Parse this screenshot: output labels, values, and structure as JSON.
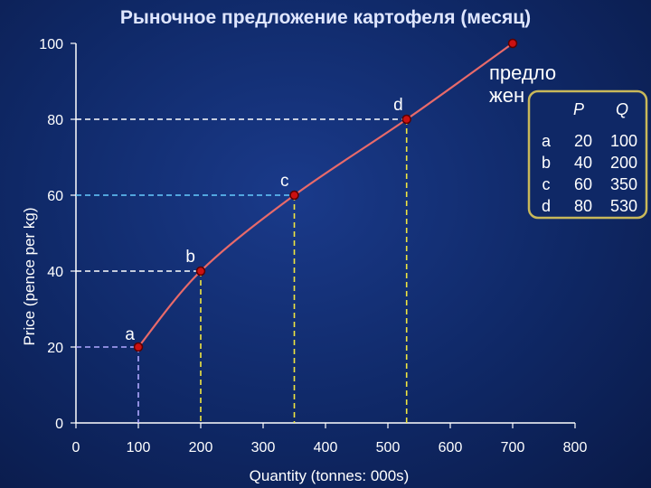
{
  "chart_data": {
    "type": "line",
    "title": "Рыночное предложение картофеля (месяц)",
    "xlabel": "Quantity (tonnes: 000s)",
    "ylabel": "Price (pence per kg)",
    "xlim": [
      0,
      800
    ],
    "ylim": [
      0,
      100
    ],
    "xticks": [
      0,
      100,
      200,
      300,
      400,
      500,
      600,
      700,
      800
    ],
    "yticks": [
      0,
      20,
      40,
      60,
      80,
      100
    ],
    "grid": false,
    "curve_label_lines": [
      "предло",
      "жен"
    ],
    "series": [
      {
        "values": [
          {
            "label": "a",
            "x": 100,
            "y": 20
          },
          {
            "label": "b",
            "x": 200,
            "y": 40
          },
          {
            "label": "c",
            "x": 350,
            "y": 60
          },
          {
            "label": "d",
            "x": 530,
            "y": 80
          },
          {
            "label": "",
            "x": 700,
            "y": 100
          }
        ]
      }
    ],
    "table": {
      "headers": [
        "P",
        "Q"
      ],
      "rows": [
        {
          "label": "a",
          "P": "20",
          "Q": "100"
        },
        {
          "label": "b",
          "P": "40",
          "Q": "200"
        },
        {
          "label": "c",
          "P": "60",
          "Q": "350"
        },
        {
          "label": "d",
          "P": "80",
          "Q": "530"
        }
      ]
    },
    "colors": {
      "curve": "#e86a6a",
      "point": "#cc1111",
      "point_edge": "#5a0000",
      "guide_p_white": "#ffffff",
      "guide_lavender": "#b0a8ff",
      "guide_cyan": "#66ccff",
      "guide_yellow": "#f0e640",
      "table_border": "#c8b85a"
    }
  }
}
